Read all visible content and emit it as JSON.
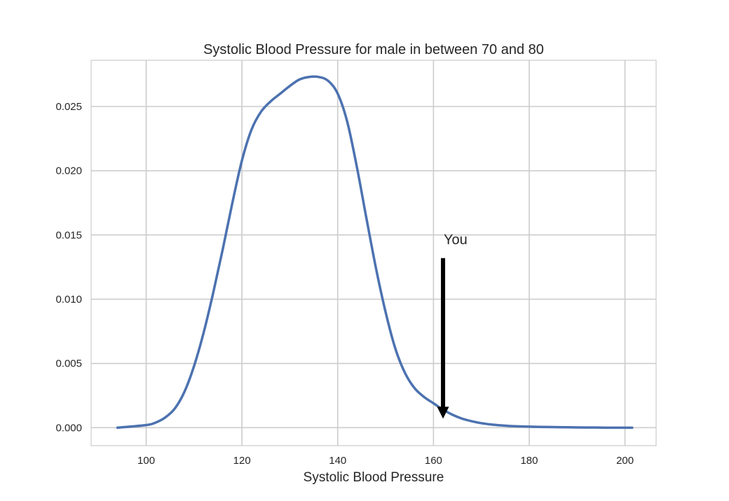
{
  "chart_data": {
    "type": "line",
    "title": "Systolic Blood Pressure for male in between 70 and 80",
    "xlabel": "Systolic Blood Pressure",
    "ylabel": "",
    "xlim": [
      88.5,
      206.5
    ],
    "ylim": [
      -0.0014,
      0.0286
    ],
    "xticks": [
      100,
      120,
      140,
      160,
      180,
      200
    ],
    "yticks": [
      0.0,
      0.005,
      0.01,
      0.015,
      0.02,
      0.025
    ],
    "grid": true,
    "line_color": "#4c72b0",
    "series": [
      {
        "x": [
          94,
          100,
          102,
          104,
          106,
          108,
          110,
          112,
          114,
          116,
          118,
          120,
          122,
          124,
          126,
          128,
          130,
          132,
          134,
          136,
          138,
          140,
          142,
          144,
          146,
          148,
          150,
          152,
          154,
          156,
          158,
          160,
          162,
          164,
          166,
          168,
          170,
          172,
          174,
          176,
          178,
          180,
          182,
          184,
          186,
          188,
          190,
          192,
          194,
          196,
          198,
          200,
          201.5
        ],
        "y": [
          0.0,
          0.0002,
          0.0004,
          0.0008,
          0.0015,
          0.0028,
          0.0048,
          0.0074,
          0.0105,
          0.0139,
          0.0175,
          0.0208,
          0.0232,
          0.0246,
          0.0254,
          0.026,
          0.0266,
          0.0271,
          0.0273,
          0.0273,
          0.027,
          0.026,
          0.0238,
          0.0203,
          0.0163,
          0.0124,
          0.009,
          0.0062,
          0.0043,
          0.0031,
          0.0024,
          0.0019,
          0.0014,
          0.001,
          0.0007,
          0.0005,
          0.00035,
          0.00025,
          0.00018,
          0.00013,
          0.0001,
          8e-05,
          6e-05,
          5e-05,
          4e-05,
          3e-05,
          2e-05,
          1e-05,
          1e-05,
          0.0,
          0.0,
          0.0,
          0.0
        ]
      }
    ],
    "annotation": {
      "text": "You",
      "x": 162,
      "arrow_from_y": 0.0132,
      "arrow_to_y": 0.0007
    }
  }
}
